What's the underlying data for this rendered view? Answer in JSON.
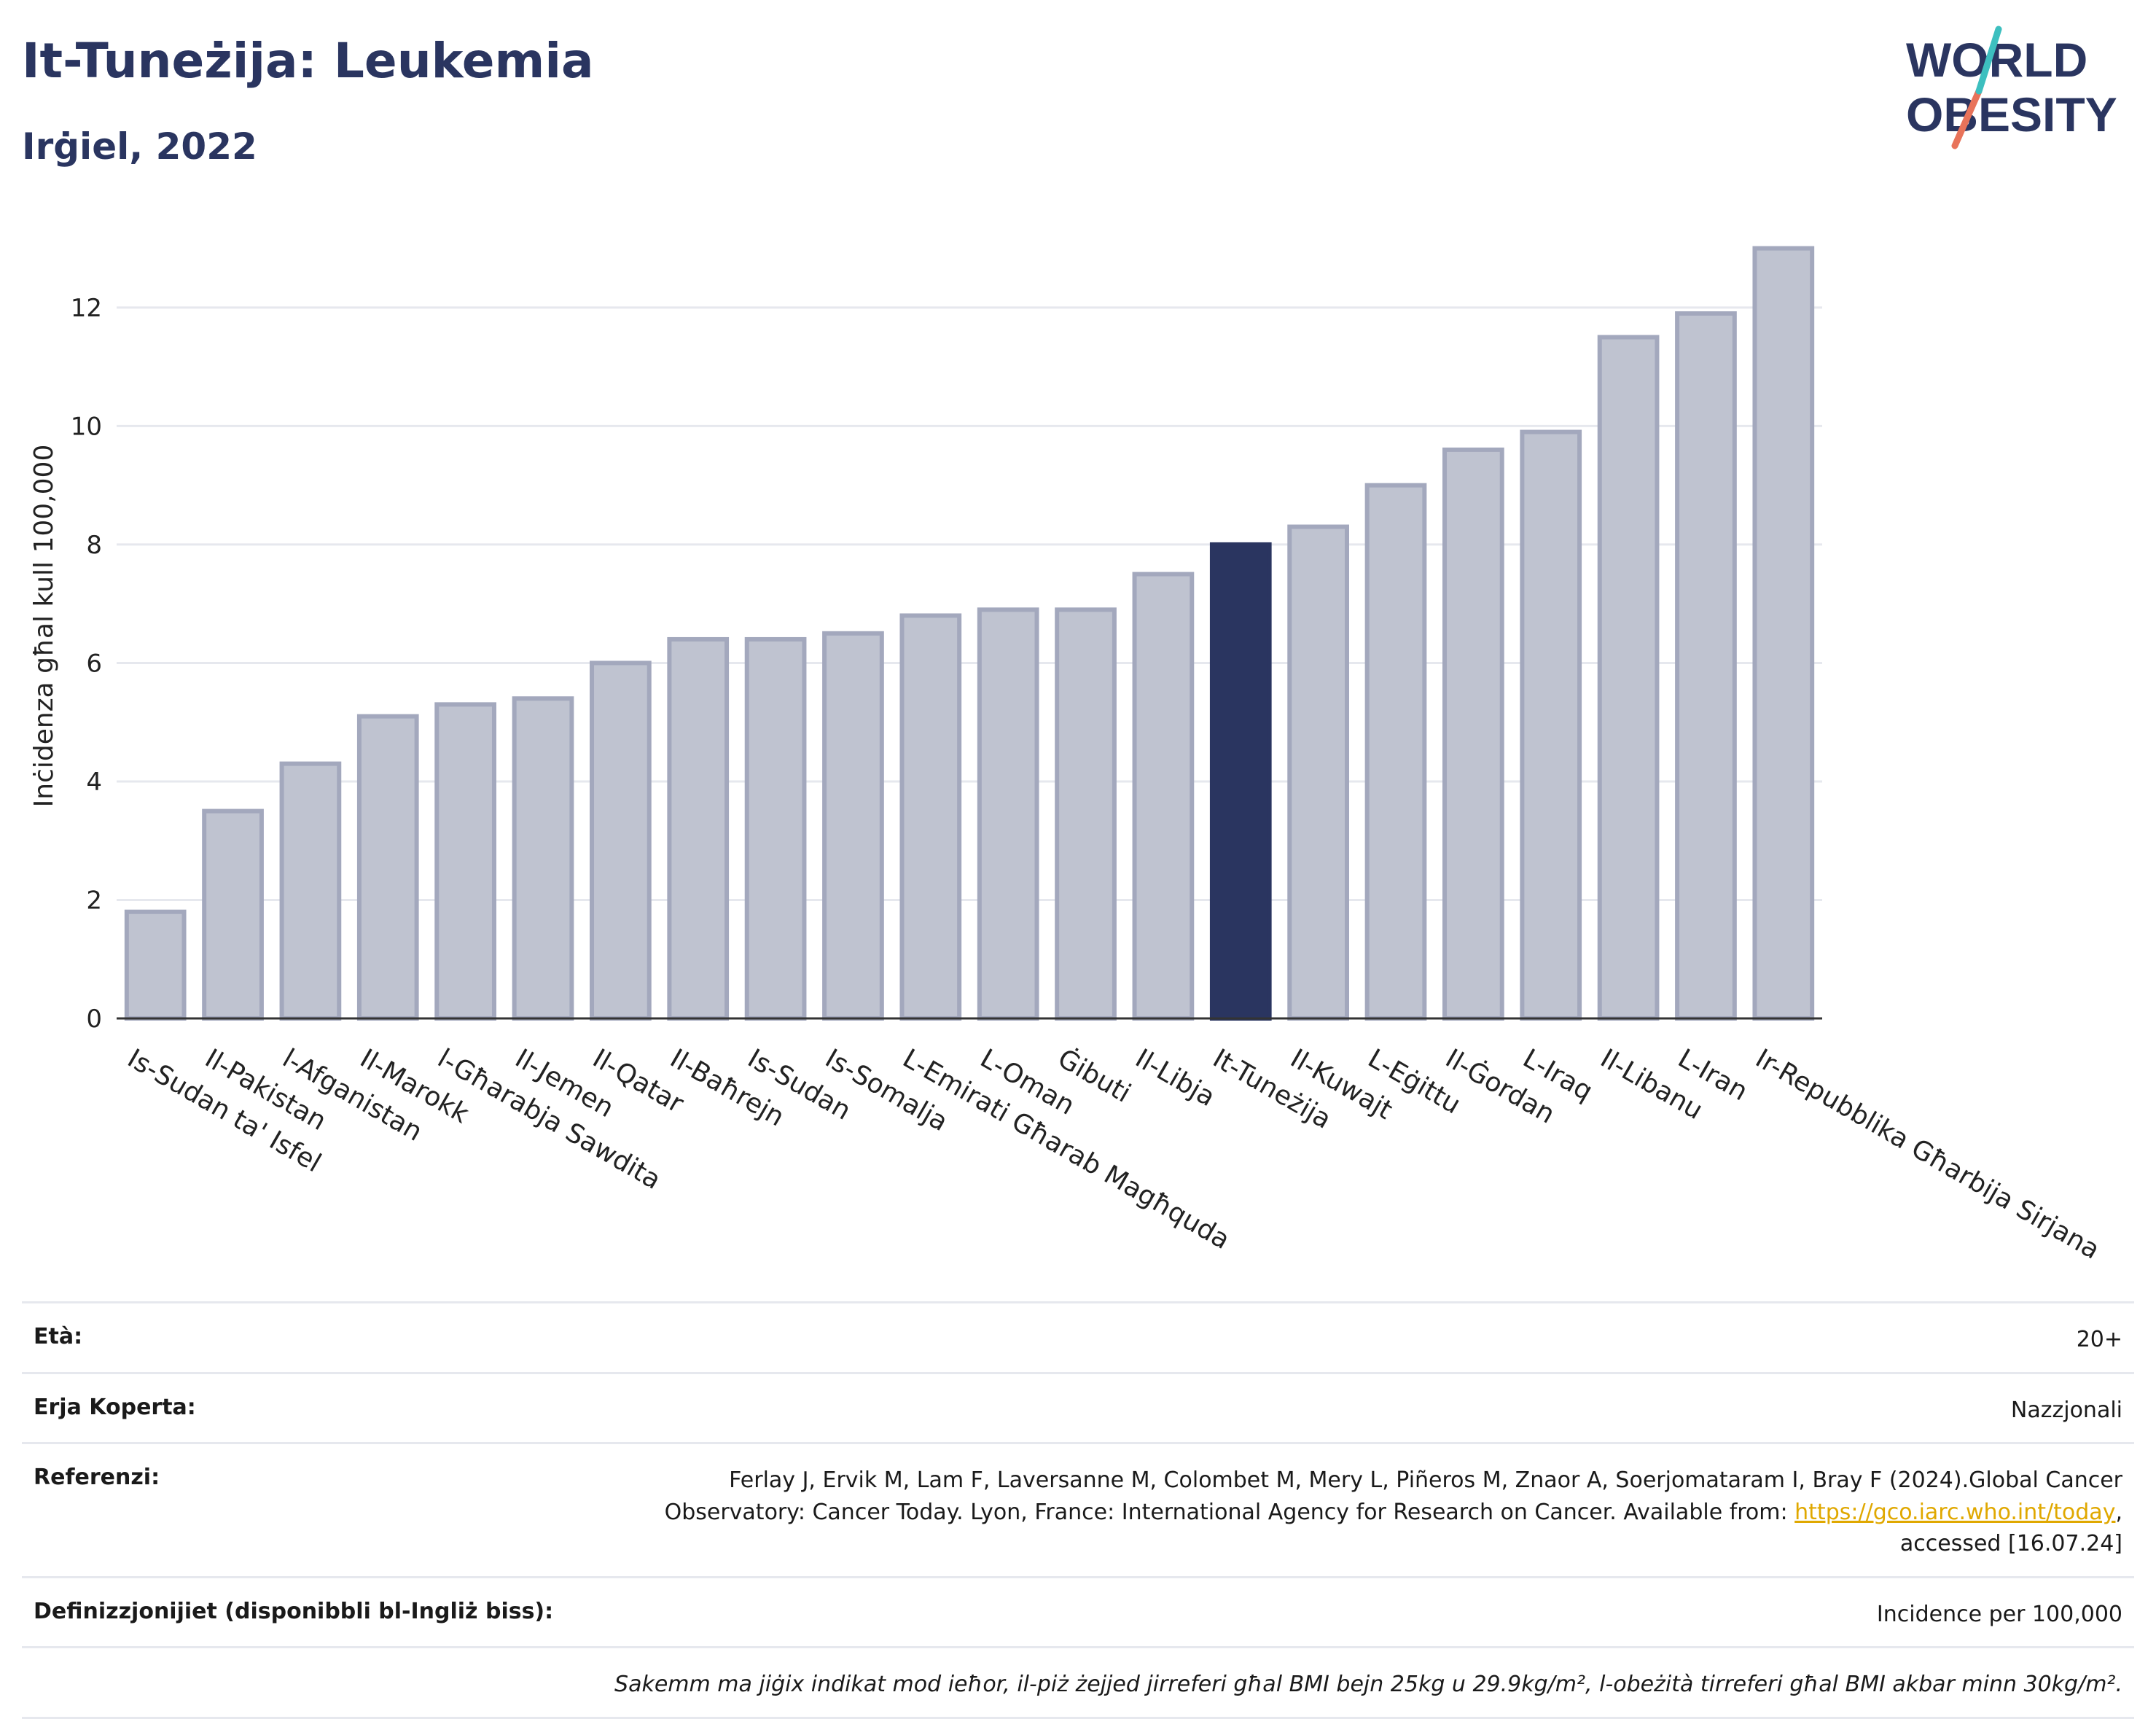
{
  "header": {
    "title": "It-Tuneżija: Leukemia",
    "subtitle": "Irġiel, 2022"
  },
  "logo": {
    "line1": "WORLD",
    "line2": "OBESITY"
  },
  "colors": {
    "bar": "#bfc3d0",
    "bar_edge": "#a3a8bd",
    "highlight": "#2a3560",
    "grid": "#e6e8ee"
  },
  "chart_data": {
    "type": "bar",
    "ylabel": "Inċidenza għal kull 100,000",
    "xlabel": "",
    "ylim": [
      0,
      13.5
    ],
    "yticks": [
      0,
      2,
      4,
      6,
      8,
      10,
      12
    ],
    "highlight": "It-Tuneżija",
    "categories": [
      "Is-Sudan ta' Isfel",
      "Il-Pakistan",
      "l-Afganistan",
      "Il-Marokk",
      "l-Għarabja Sawdita",
      "Il-Jemen",
      "Il-Qatar",
      "Il-Baħrejn",
      "Is-Sudan",
      "Is-Somalja",
      "L-Emirati Għarab Magħquda",
      "L-Oman",
      "Ġibuti",
      "Il-Libja",
      "It-Tuneżija",
      "Il-Kuwajt",
      "L-Eġittu",
      "Il-Ġordan",
      "L-Iraq",
      "Il-Libanu",
      "L-Iran",
      "Ir-Repubblika Għarbija Sirjana"
    ],
    "values": [
      1.8,
      3.5,
      4.3,
      5.1,
      5.3,
      5.4,
      6.0,
      6.4,
      6.4,
      6.5,
      6.8,
      6.9,
      6.9,
      7.5,
      8.0,
      8.3,
      9.0,
      9.6,
      9.9,
      11.5,
      11.9,
      13.0
    ]
  },
  "info": {
    "age_label": "Età:",
    "age_value": "20+",
    "area_label": "Erja Koperta:",
    "area_value": "Nazzjonali",
    "ref_label": "Referenzi:",
    "ref_text1": "Ferlay J, Ervik M, Lam F, Laversanne M, Colombet M, Mery L, Piñeros M, Znaor A, Soerjomataram I, Bray F (2024).Global Cancer",
    "ref_text2": "Observatory: Cancer Today. Lyon, France: International Agency for Research on Cancer. Available from: ",
    "ref_link": "https://gco.iarc.who.int/today",
    "ref_text3": ",",
    "ref_text4": "accessed [16.07.24]",
    "def_label": "Definizzjonijiet (disponibbli bl-Ingliż biss):",
    "def_value": "Incidence per 100,000",
    "note": "Sakemm ma jiġix indikat mod ieħor, il-piż żejjed jirreferi għal BMI bejn 25kg u 29.9kg/m², l-obeżità tirreferi għal BMI akbar minn 30kg/m²."
  }
}
